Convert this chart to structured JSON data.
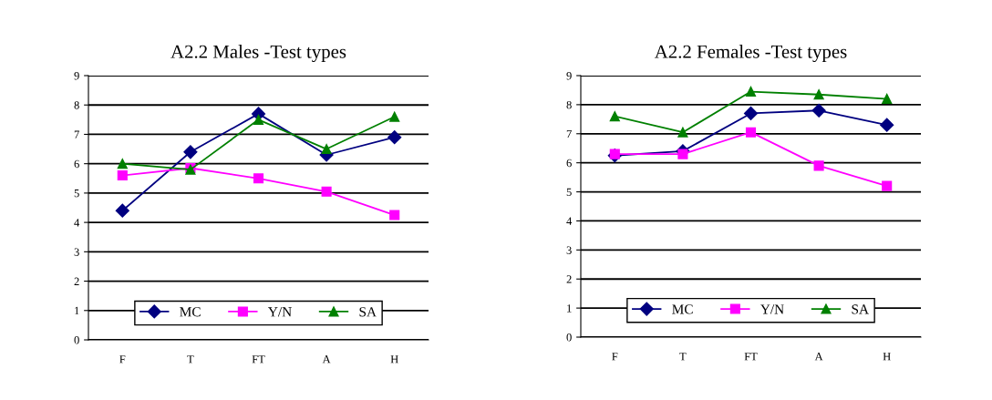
{
  "chart_data": [
    {
      "type": "line",
      "title": "A2.2 Males -Test types",
      "categories": [
        "F",
        "T",
        "FT",
        "A",
        "H"
      ],
      "ylim": [
        0,
        9
      ],
      "yticks": [
        0,
        1,
        2,
        3,
        4,
        5,
        6,
        7,
        8,
        9
      ],
      "grid": "y",
      "legend": "bottom",
      "series": [
        {
          "name": "MC",
          "color": "#000080",
          "marker": "diamond",
          "values": [
            4.4,
            6.4,
            7.7,
            6.3,
            6.9
          ]
        },
        {
          "name": "Y/N",
          "color": "#ff00ff",
          "marker": "square",
          "values": [
            5.6,
            5.85,
            5.5,
            5.05,
            4.25
          ]
        },
        {
          "name": "SA",
          "color": "#008000",
          "marker": "triangle",
          "values": [
            6.0,
            5.8,
            7.5,
            6.5,
            7.6
          ]
        }
      ]
    },
    {
      "type": "line",
      "title": "A2.2 Females -Test types",
      "categories": [
        "F",
        "T",
        "FT",
        "A",
        "H"
      ],
      "ylim": [
        0,
        9
      ],
      "yticks": [
        0,
        1,
        2,
        3,
        4,
        5,
        6,
        7,
        8,
        9
      ],
      "grid": "y",
      "legend": "bottom",
      "series": [
        {
          "name": "MC",
          "color": "#000080",
          "marker": "diamond",
          "values": [
            6.25,
            6.4,
            7.7,
            7.8,
            7.3
          ]
        },
        {
          "name": "Y/N",
          "color": "#ff00ff",
          "marker": "square",
          "values": [
            6.3,
            6.3,
            7.05,
            5.9,
            5.2
          ]
        },
        {
          "name": "SA",
          "color": "#008000",
          "marker": "triangle",
          "values": [
            7.6,
            7.05,
            8.45,
            8.35,
            8.2
          ]
        }
      ]
    }
  ]
}
